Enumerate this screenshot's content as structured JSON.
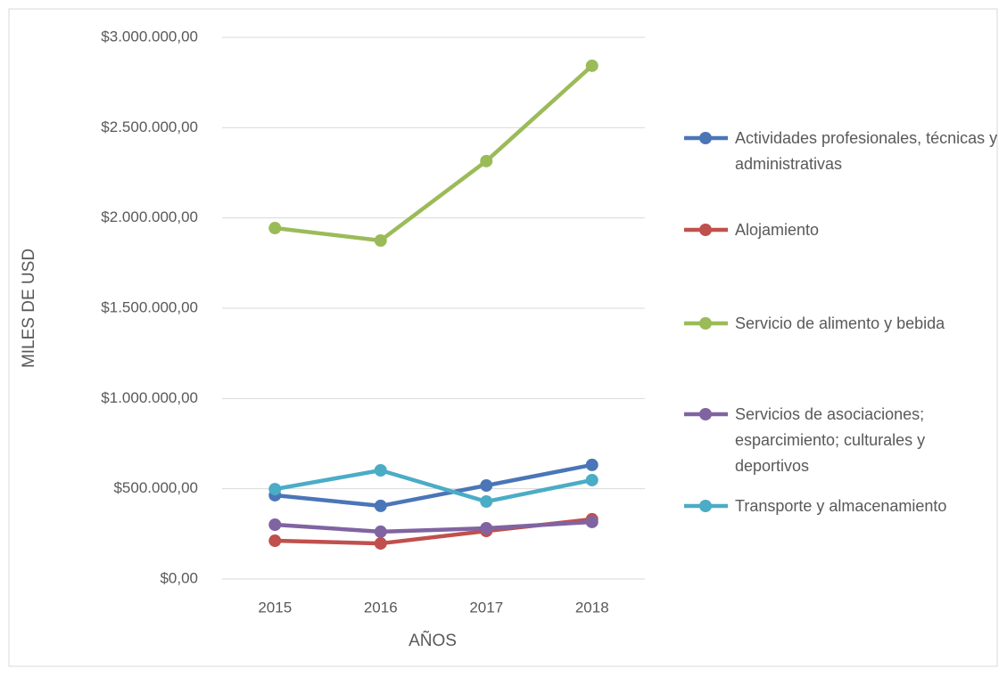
{
  "chart_data": {
    "type": "line",
    "x_label": "AÑOS",
    "y_label": "MILES DE USD",
    "categories": [
      "2015",
      "2016",
      "2017",
      "2018"
    ],
    "series": [
      {
        "name": "Actividades profesionales, técnicas y administrativas",
        "color": "#4a76b8",
        "values": [
          464000,
          405000,
          518000,
          632000
        ]
      },
      {
        "name": "Alojamiento",
        "color": "#c0504d",
        "values": [
          212000,
          197000,
          266000,
          331000
        ]
      },
      {
        "name": "Servicio de alimento y bebida",
        "color": "#9bbb59",
        "values": [
          1944000,
          1875000,
          2315000,
          2843000
        ]
      },
      {
        "name": "Servicios de asociaciones; esparcimiento; culturales y deportivos",
        "color": "#8064a2",
        "values": [
          301000,
          262000,
          281000,
          316000
        ]
      },
      {
        "name": "Transporte y almacenamiento",
        "color": "#4bacc6",
        "values": [
          498000,
          602000,
          429000,
          548000
        ]
      }
    ],
    "ylim": [
      0,
      3000000
    ],
    "yticks": [
      {
        "value": 0,
        "label": "$0,00"
      },
      {
        "value": 500000,
        "label": "$500.000,00"
      },
      {
        "value": 1000000,
        "label": "$1.000.000,00"
      },
      {
        "value": 1500000,
        "label": "$1.500.000,00"
      },
      {
        "value": 2000000,
        "label": "$2.000.000,00"
      },
      {
        "value": 2500000,
        "label": "$2.500.000,00"
      },
      {
        "value": 3000000,
        "label": "$3.000.000,00"
      }
    ],
    "grid": true,
    "legend": "right"
  }
}
